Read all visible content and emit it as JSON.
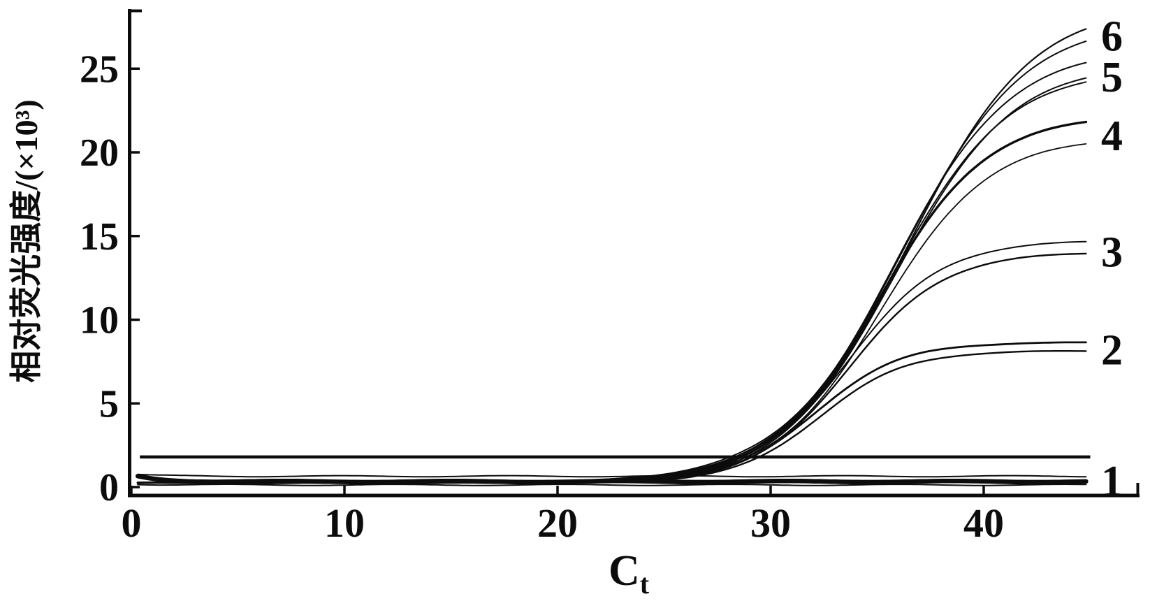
{
  "figure": {
    "background": "#ffffff",
    "ink": "#0c0c0c"
  },
  "chart_data": {
    "type": "line",
    "title": "",
    "ylabel": "相对荧光强度/(×10³)",
    "xlabel_base": "C",
    "xlabel_sub": "t",
    "x_ticks": [
      0,
      10,
      20,
      30,
      40
    ],
    "y_ticks": [
      0,
      5,
      10,
      15,
      20,
      25
    ],
    "xlim": [
      0,
      47.4
    ],
    "ylim": [
      0,
      29
    ],
    "grid": false,
    "legend_position": "curve-end-right",
    "curve_x_range": [
      0.3,
      45
    ],
    "threshold_line": {
      "value": 1.8,
      "x_start": 0.4,
      "x_end": 45
    },
    "baseline_level": 0.25,
    "series": [
      {
        "label": "6",
        "kind": "sigmoid",
        "replicates": [
          {
            "asymptote": 28.6,
            "k": 0.35,
            "x0": 36.5,
            "width": 2.2
          },
          {
            "asymptote": 27.7,
            "k": 0.35,
            "x0": 36.2,
            "width": 2.0
          }
        ],
        "end_values": [
          27.4,
          26.5
        ],
        "ct_threshold_cross": 28.3,
        "sampled": {
          "x": [
            20,
            25,
            30,
            35,
            40,
            45
          ],
          "y": [
            0.3,
            0.75,
            3.0,
            11.1,
            22.3,
            27.2
          ]
        }
      },
      {
        "label": "5",
        "kind": "sigmoid",
        "replicates": [
          {
            "asymptote": 26.0,
            "k": 0.37,
            "x0": 35.8,
            "width": 2.0
          },
          {
            "asymptote": 25.1,
            "k": 0.37,
            "x0": 35.9,
            "width": 2.0
          },
          {
            "asymptote": 24.8,
            "k": 0.37,
            "x0": 35.7,
            "width": 2.0
          }
        ],
        "end_values": [
          25.2,
          24.3,
          24.0
        ],
        "ct_threshold_cross": 28.4,
        "sampled": {
          "x": [
            20,
            25,
            30,
            35,
            40,
            45
          ],
          "y": [
            0.3,
            0.8,
            2.9,
            11.1,
            21.1,
            24.7
          ]
        }
      },
      {
        "label": "4",
        "kind": "sigmoid",
        "replicates": [
          {
            "asymptote": 22.0,
            "k": 0.4,
            "x0": 35.1,
            "width": 3.4
          },
          {
            "asymptote": 20.7,
            "k": 0.4,
            "x0": 35.2,
            "width": 1.8
          }
        ],
        "end_values": [
          21.7,
          20.3
        ],
        "ct_threshold_cross": 28.7,
        "sampled": {
          "x": [
            20,
            25,
            30,
            35,
            40,
            45
          ],
          "y": [
            0.3,
            0.7,
            2.7,
            10.6,
            18.9,
            21.1
          ]
        }
      },
      {
        "label": "3",
        "kind": "sigmoid",
        "replicates": [
          {
            "asymptote": 14.5,
            "k": 0.45,
            "x0": 33.6,
            "width": 2.0
          },
          {
            "asymptote": 13.8,
            "k": 0.45,
            "x0": 33.7,
            "width": 2.4
          }
        ],
        "end_values": [
          14.4,
          13.7
        ],
        "ct_threshold_cross": 28.9,
        "sampled": {
          "x": [
            20,
            25,
            30,
            35,
            40,
            45
          ],
          "y": [
            0.3,
            0.6,
            2.5,
            9.4,
            13.6,
            14.3
          ]
        }
      },
      {
        "label": "2",
        "kind": "sigmoid",
        "replicates": [
          {
            "asymptote": 8.4,
            "k": 0.5,
            "x0": 32.1,
            "width": 2.8
          },
          {
            "asymptote": 7.9,
            "k": 0.5,
            "x0": 32.3,
            "width": 2.4
          }
        ],
        "end_values": [
          8.5,
          7.9
        ],
        "ct_threshold_cross": 29.2,
        "sampled": {
          "x": [
            20,
            25,
            30,
            35,
            40,
            45
          ],
          "y": [
            0.3,
            0.5,
            2.3,
            6.8,
            8.3,
            8.4
          ]
        }
      },
      {
        "label": "1",
        "kind": "flat",
        "replicates": [
          {
            "flat": 0.65,
            "start_bump": 0.1,
            "width": 2.0
          },
          {
            "flat": 0.33,
            "start_bump": 0.3,
            "width": 6.5
          },
          {
            "flat": 0.13,
            "start_bump": 0.05,
            "width": 2.0
          }
        ],
        "end_values": [
          0.65,
          0.33,
          0.13
        ],
        "ct_threshold_cross": null,
        "sampled": {
          "x": [
            20,
            25,
            30,
            35,
            40,
            45
          ],
          "y": [
            0.3,
            0.3,
            0.3,
            0.3,
            0.35,
            0.4
          ]
        }
      }
    ]
  }
}
